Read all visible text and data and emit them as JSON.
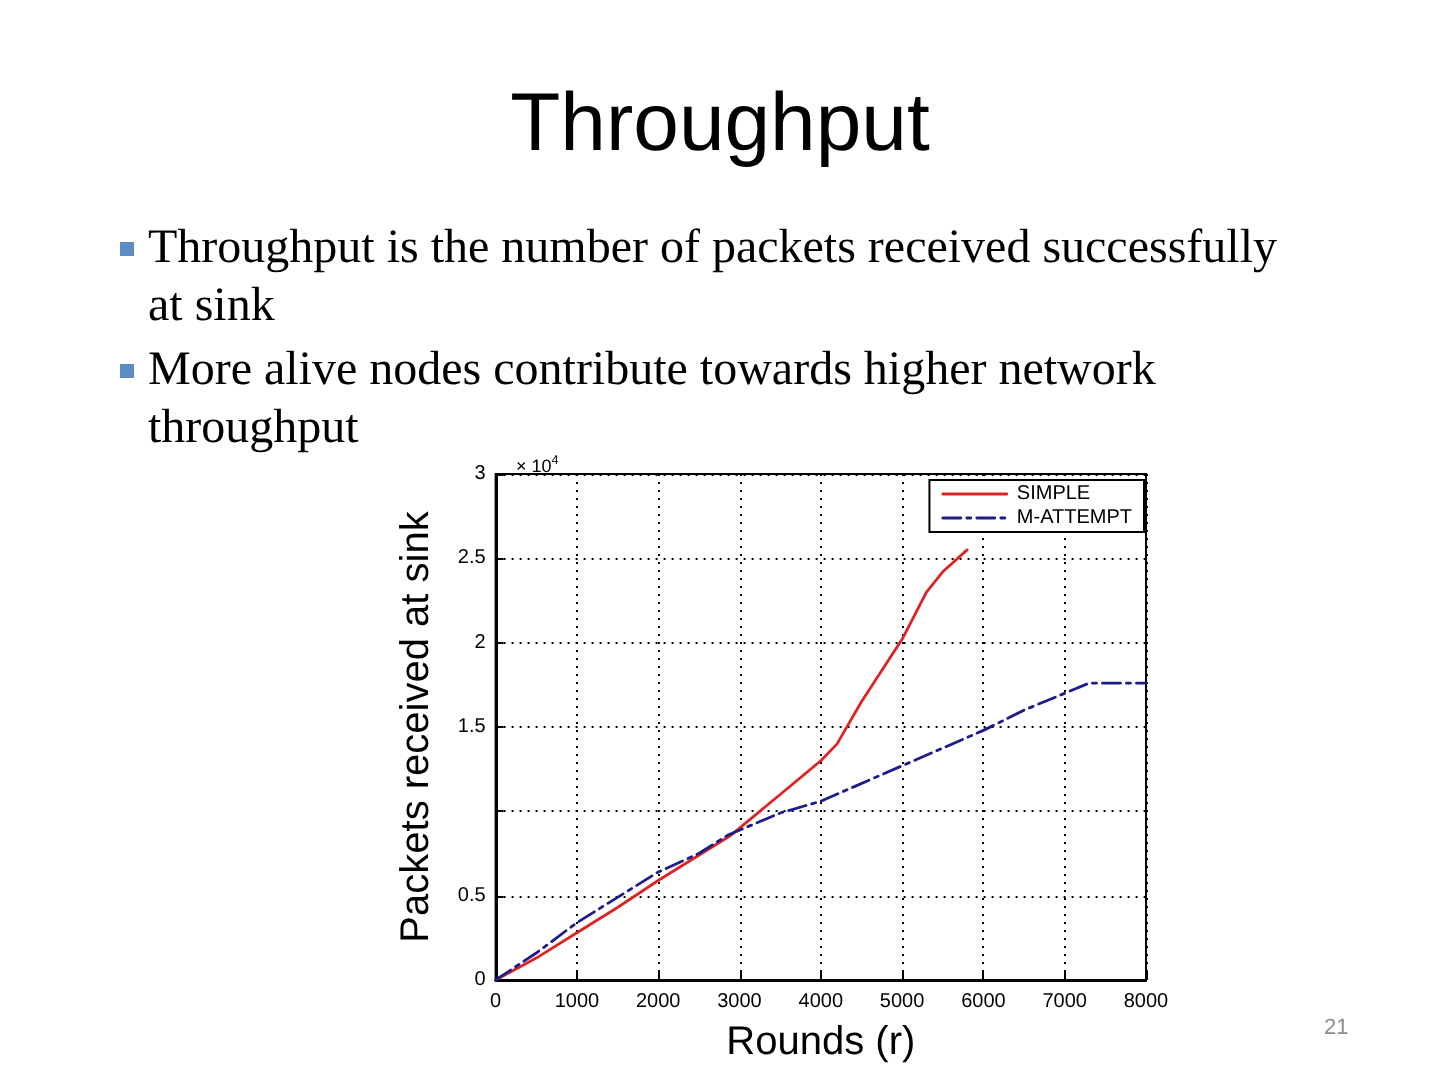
{
  "chart_data": {
    "type": "line",
    "title": "Throughput",
    "xlabel": "Rounds (r)",
    "ylabel": "Packets received at sink",
    "annotations": [
      "Throughput is the number of packets received successfully at sink",
      "More alive nodes contribute towards higher network throughput",
      "× 10$^{4}$",
      "21"
    ],
    "xlim": [
      0,
      8000
    ],
    "xticks": [
      0,
      1000,
      2000,
      3000,
      4000,
      5000,
      6000,
      7000,
      8000
    ],
    "ylim": [
      0,
      3
    ],
    "yticks": [
      0,
      0.5,
      {
        "value": 1,
        "label": null
      },
      1.5,
      2,
      2.5,
      3
    ],
    "grid": true,
    "legend": "top right",
    "marker": "none",
    "series": [
      {
        "name": "SIMPLE",
        "color": "#dd2424",
        "line_style": "solid",
        "x": [
          0,
          500,
          1000,
          1500,
          2000,
          2500,
          2900,
          3000,
          3500,
          4000,
          4200,
          4500,
          5000,
          5300,
          5500,
          5800
        ],
        "values": [
          0,
          0.13,
          0.28,
          0.43,
          0.59,
          0.74,
          0.86,
          0.9,
          1.1,
          1.3,
          1.4,
          1.65,
          2.02,
          2.3,
          2.42,
          2.55
        ]
      },
      {
        "name": "M-ATTEMPT",
        "color": "#1c1c8a",
        "line_style": "dashdot",
        "x": [
          0,
          500,
          1000,
          1500,
          2000,
          2500,
          2860,
          3500,
          4000,
          5000,
          6000,
          6500,
          7000,
          7300,
          8000
        ],
        "values": [
          0,
          0.16,
          0.34,
          0.49,
          0.64,
          0.75,
          0.86,
          0.99,
          1.06,
          1.27,
          1.48,
          1.6,
          1.7,
          1.76,
          1.76
        ]
      }
    ]
  }
}
